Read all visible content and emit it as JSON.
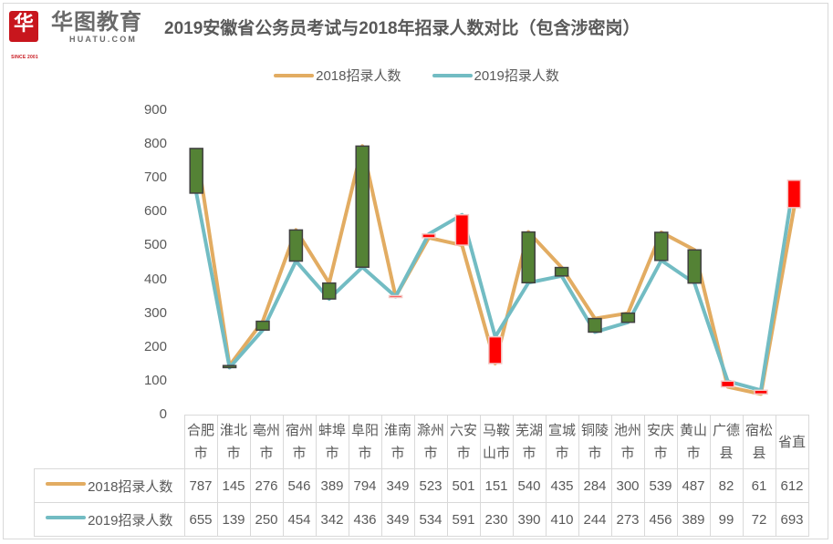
{
  "logo": {
    "badge": "华",
    "cn": "华图教育",
    "en": "HUATU.COM",
    "since": "SINCE 2001"
  },
  "title": "2019安徽省公务员考试与2018年招录人数对比（包含涉密岗）",
  "colors": {
    "s2018": "#E2AC62",
    "s2019": "#72BCC3",
    "up": "#548235",
    "down": "#FF0000",
    "grid": "#D9D9D9",
    "text": "#595959"
  },
  "legend": [
    {
      "label": "2018招录人数",
      "color": "#E2AC62"
    },
    {
      "label": "2019招录人数",
      "color": "#72BCC3"
    }
  ],
  "y_ticks": [
    "900",
    "800",
    "700",
    "600",
    "500",
    "400",
    "300",
    "200",
    "100",
    "0"
  ],
  "chart_data": {
    "type": "line",
    "title": "2019安徽省公务员考试与2018年招录人数对比（包含涉密岗）",
    "xlabel": "",
    "ylabel": "",
    "ylim": [
      0,
      900
    ],
    "grid": false,
    "legend_position": "top",
    "categories": [
      "合肥市",
      "淮北市",
      "亳州市",
      "宿州市",
      "蚌埠市",
      "阜阳市",
      "淮南市",
      "滁州市",
      "六安市",
      "马鞍山市",
      "芜湖市",
      "宣城市",
      "铜陵市",
      "池州市",
      "安庆市",
      "黄山市",
      "广德县",
      "宿松县",
      "省直"
    ],
    "category_lines": [
      [
        "合肥",
        "市"
      ],
      [
        "淮北",
        "市"
      ],
      [
        "亳州",
        "市"
      ],
      [
        "宿州",
        "市"
      ],
      [
        "蚌埠",
        "市"
      ],
      [
        "阜阳",
        "市"
      ],
      [
        "淮南",
        "市"
      ],
      [
        "滁州",
        "市"
      ],
      [
        "六安",
        "市"
      ],
      [
        "马鞍",
        "山市"
      ],
      [
        "芜湖",
        "市"
      ],
      [
        "宣城",
        "市"
      ],
      [
        "铜陵",
        "市"
      ],
      [
        "池州",
        "市"
      ],
      [
        "安庆",
        "市"
      ],
      [
        "黄山",
        "市"
      ],
      [
        "广德",
        "县"
      ],
      [
        "宿松",
        "县"
      ],
      [
        "省直",
        ""
      ]
    ],
    "series": [
      {
        "name": "2018招录人数",
        "color": "#E2AC62",
        "values": [
          787,
          145,
          276,
          546,
          389,
          794,
          349,
          523,
          501,
          151,
          540,
          435,
          284,
          300,
          539,
          487,
          82,
          61,
          612
        ]
      },
      {
        "name": "2019招录人数",
        "color": "#72BCC3",
        "values": [
          655,
          139,
          250,
          454,
          342,
          436,
          349,
          534,
          591,
          230,
          390,
          410,
          244,
          273,
          456,
          389,
          99,
          72,
          693
        ]
      }
    ],
    "up_down_bars": {
      "decrease_color": "#548235",
      "increase_color": "#FF0000"
    },
    "data_table": true
  }
}
